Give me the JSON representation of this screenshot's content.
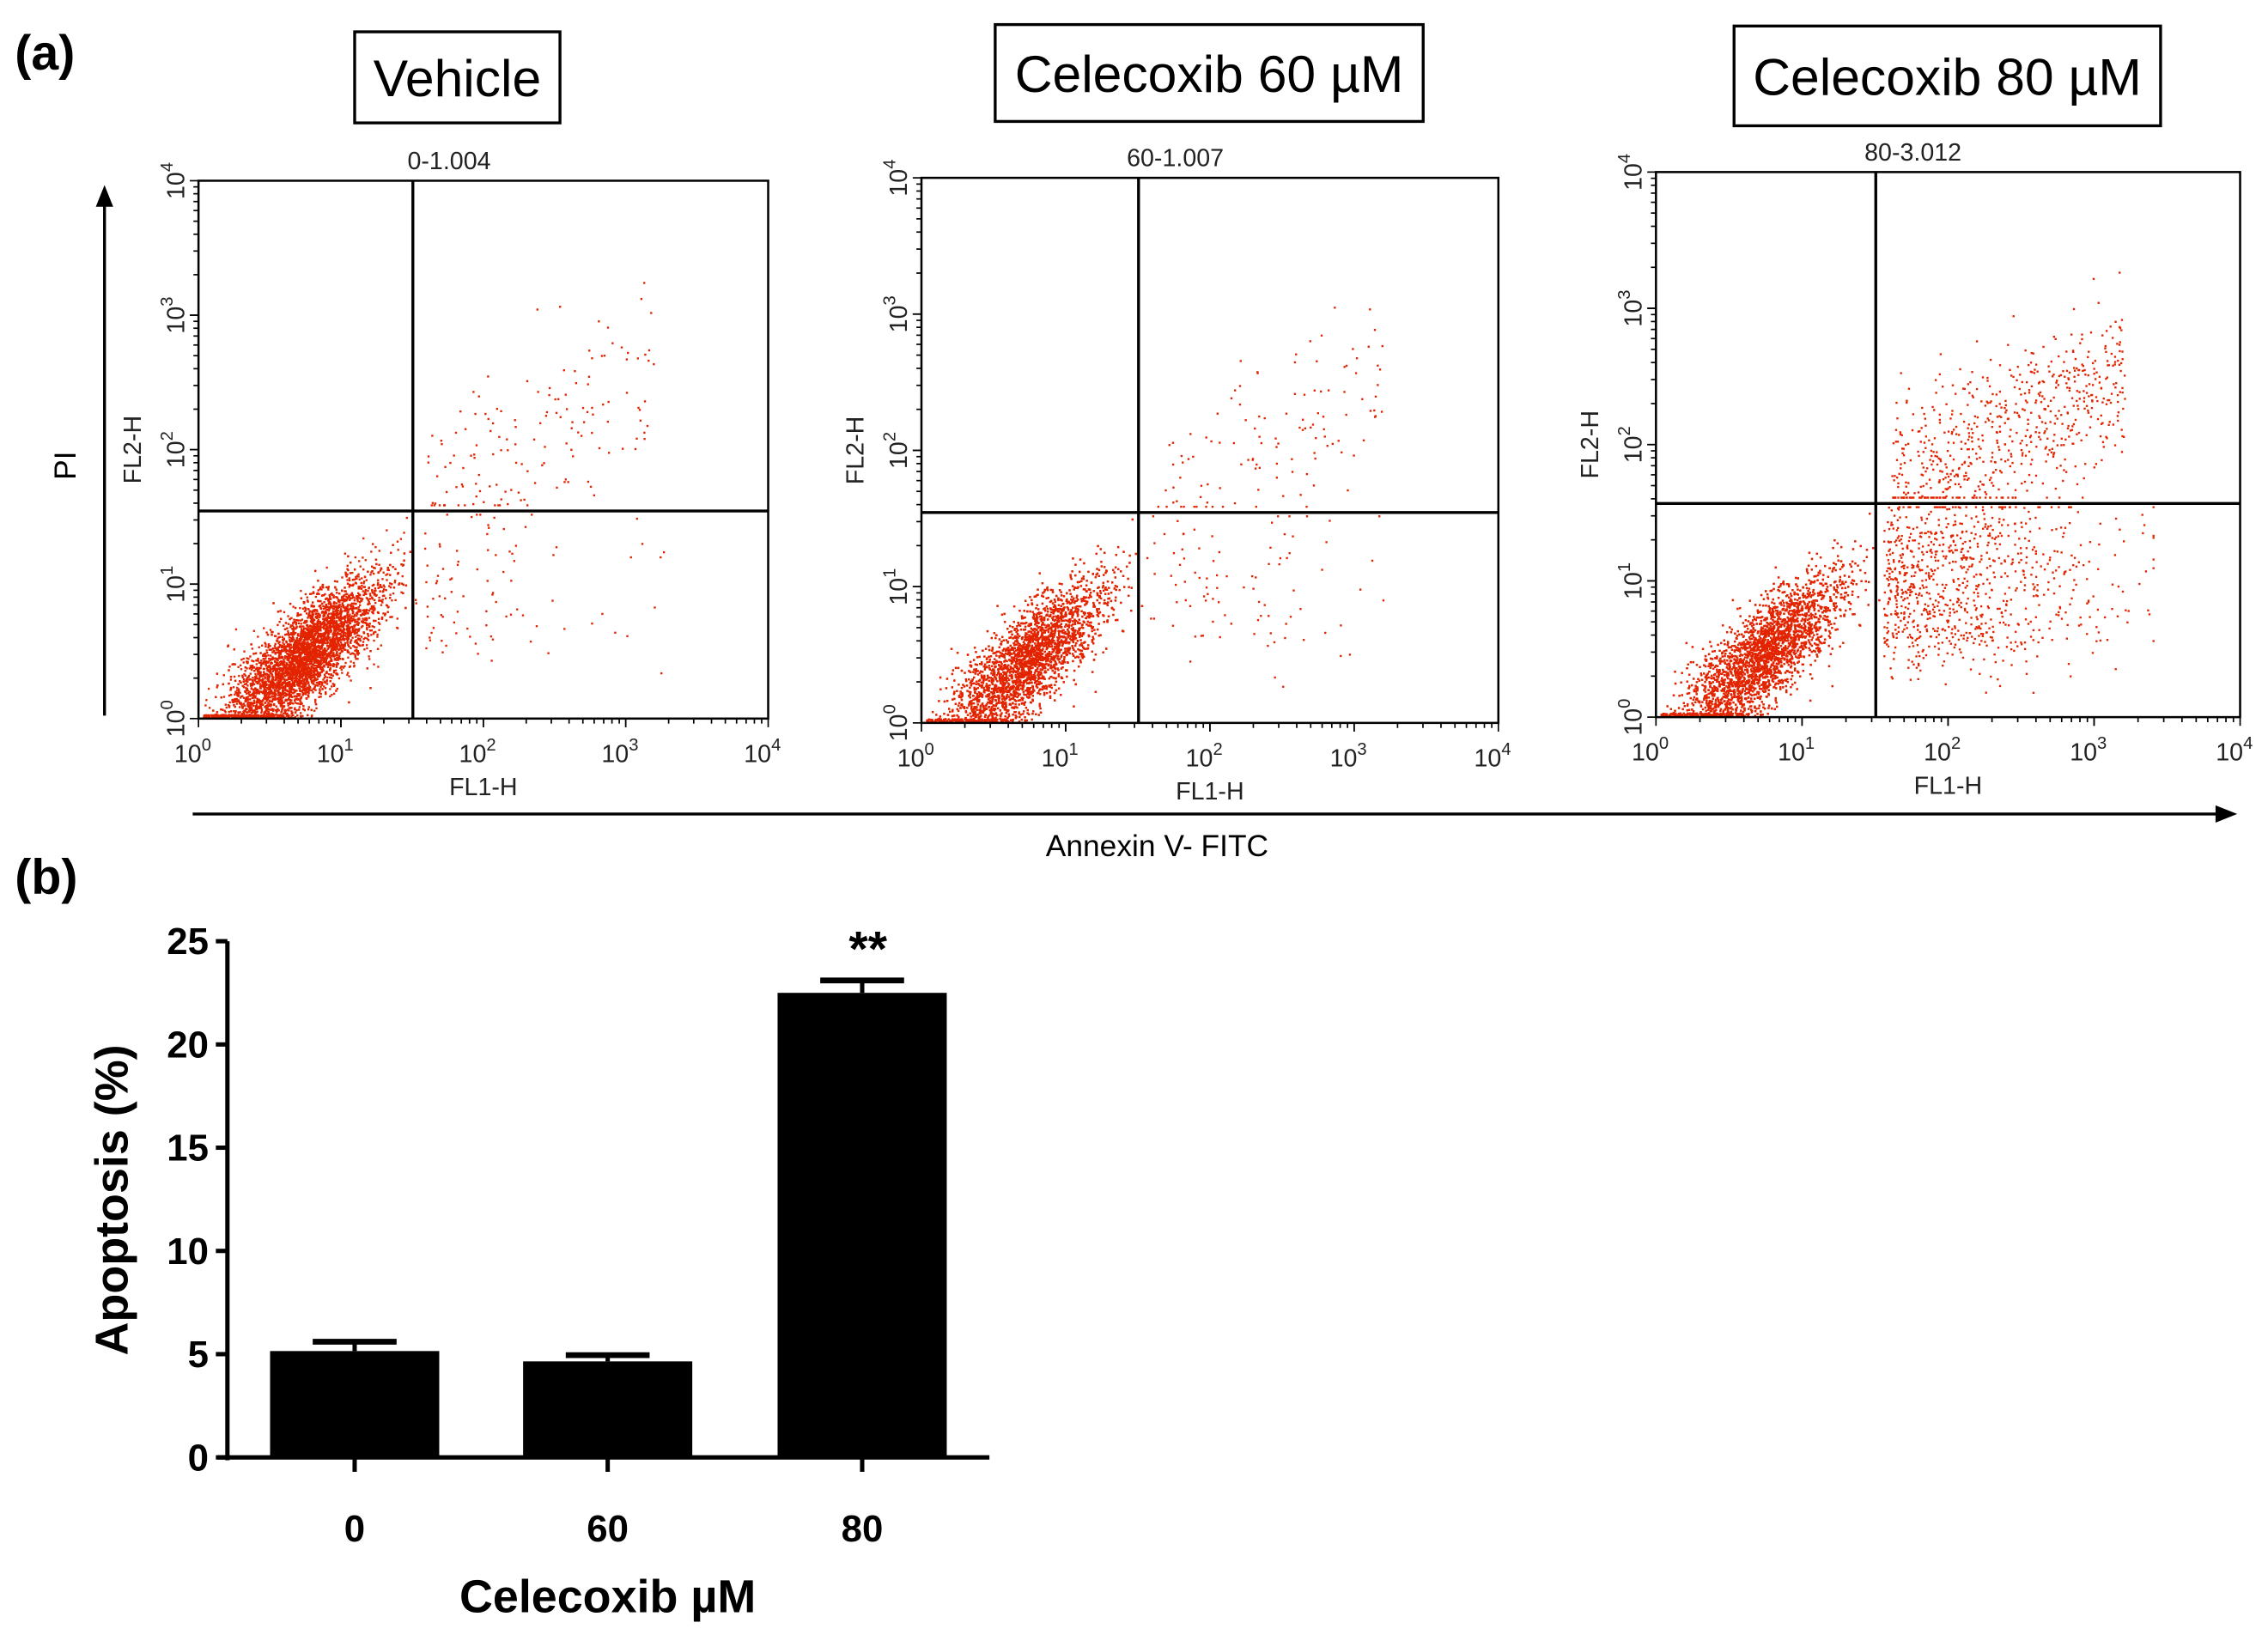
{
  "panel_labels": {
    "a": "(a)",
    "b": "(b)"
  },
  "axis_labels": {
    "annexin": "Annexin V- FITC",
    "pi": "PI"
  },
  "chart_data": [
    {
      "type": "scatter",
      "title": "Vehicle",
      "subtitle": "0-1.004",
      "xlabel": "FL1-H",
      "ylabel": "FL2-H",
      "xscale": "log",
      "yscale": "log",
      "xlim": [
        1,
        10000
      ],
      "ylim": [
        1,
        10000
      ],
      "tick_labels": [
        "10",
        "10",
        "10",
        "10",
        "10"
      ],
      "tick_exponents": [
        "0",
        "1",
        "2",
        "3",
        "4"
      ],
      "quadrant_gate": {
        "x": 32,
        "y": 35
      },
      "late_apoptotic_density": 0.05,
      "early_apoptotic_density": 0.03,
      "point_color": "#e32400"
    },
    {
      "type": "scatter",
      "title": "Celecoxib 60 µM",
      "subtitle": "60-1.007",
      "xlabel": "FL1-H",
      "ylabel": "FL2-H",
      "xscale": "log",
      "yscale": "log",
      "xlim": [
        1,
        10000
      ],
      "ylim": [
        1,
        10000
      ],
      "tick_labels": [
        "10",
        "10",
        "10",
        "10",
        "10"
      ],
      "tick_exponents": [
        "0",
        "1",
        "2",
        "3",
        "4"
      ],
      "quadrant_gate": {
        "x": 32,
        "y": 35
      },
      "late_apoptotic_density": 0.04,
      "early_apoptotic_density": 0.03,
      "point_color": "#e32400"
    },
    {
      "type": "scatter",
      "title": "Celecoxib 80 µM",
      "subtitle": "80-3.012",
      "xlabel": "FL1-H",
      "ylabel": "FL2-H",
      "xscale": "log",
      "yscale": "log",
      "xlim": [
        1,
        10000
      ],
      "ylim": [
        1,
        10000
      ],
      "tick_labels": [
        "10",
        "10",
        "10",
        "10",
        "10"
      ],
      "tick_exponents": [
        "0",
        "1",
        "2",
        "3",
        "4"
      ],
      "quadrant_gate": {
        "x": 32,
        "y": 37
      },
      "late_apoptotic_density": 0.22,
      "early_apoptotic_density": 0.3,
      "point_color": "#e32400"
    },
    {
      "type": "bar",
      "categories": [
        "0",
        "60",
        "80"
      ],
      "values": [
        5.15,
        4.65,
        22.5
      ],
      "errors": [
        0.45,
        0.3,
        0.6
      ],
      "annotations": [
        "",
        "",
        "**"
      ],
      "xlabel": "Celecoxib µM",
      "ylabel": "Apoptosis (%)",
      "ylim": [
        0,
        25
      ],
      "yticks": [
        "0",
        "5",
        "10",
        "15",
        "20",
        "25"
      ],
      "bar_color": "#000000"
    }
  ]
}
